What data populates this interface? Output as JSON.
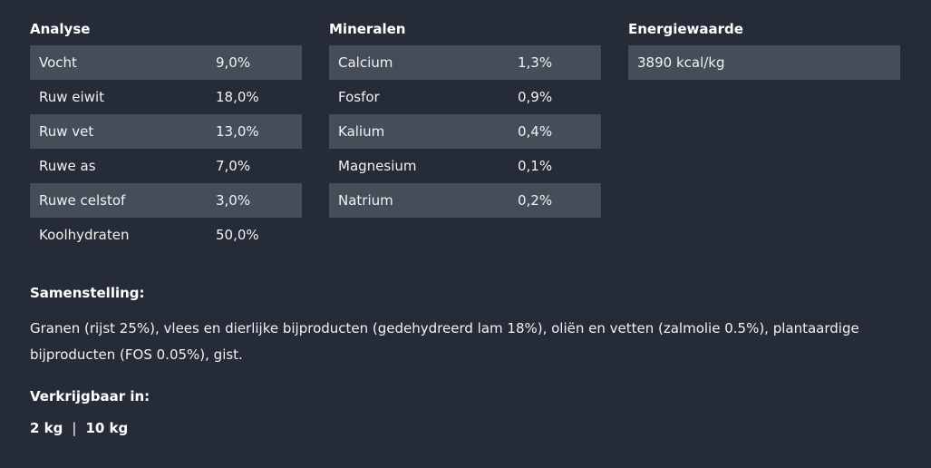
{
  "analyse": {
    "title": "Analyse",
    "rows": [
      {
        "label": "Vocht",
        "value": "9,0%"
      },
      {
        "label": "Ruw eiwit",
        "value": "18,0%"
      },
      {
        "label": "Ruw vet",
        "value": "13,0%"
      },
      {
        "label": "Ruwe as",
        "value": "7,0%"
      },
      {
        "label": "Ruwe celstof",
        "value": "3,0%"
      },
      {
        "label": "Koolhydraten",
        "value": "50,0%"
      }
    ]
  },
  "mineralen": {
    "title": "Mineralen",
    "rows": [
      {
        "label": "Calcium",
        "value": "1,3%"
      },
      {
        "label": "Fosfor",
        "value": "0,9%"
      },
      {
        "label": "Kalium",
        "value": "0,4%"
      },
      {
        "label": "Magnesium",
        "value": "0,1%"
      },
      {
        "label": "Natrium",
        "value": "0,2%"
      }
    ]
  },
  "energie": {
    "title": "Energiewaarde",
    "value": "3890 kcal/kg"
  },
  "samenstelling": {
    "title": "Samenstelling:",
    "text": "Granen (rijst 25%), vlees en dierlijke bijproducten (gedehydreerd lam 18%), oliën en vetten (zalmolie 0.5%), plantaardige bijproducten (FOS 0.05%), gist."
  },
  "verkrijgbaar": {
    "title": "Verkrijgbaar in:",
    "sizes": [
      "2 kg",
      "10 kg"
    ],
    "separator": "|"
  },
  "colors": {
    "background": "#252c38",
    "row_shaded": "#444d58",
    "text": "#f2f2f2"
  }
}
